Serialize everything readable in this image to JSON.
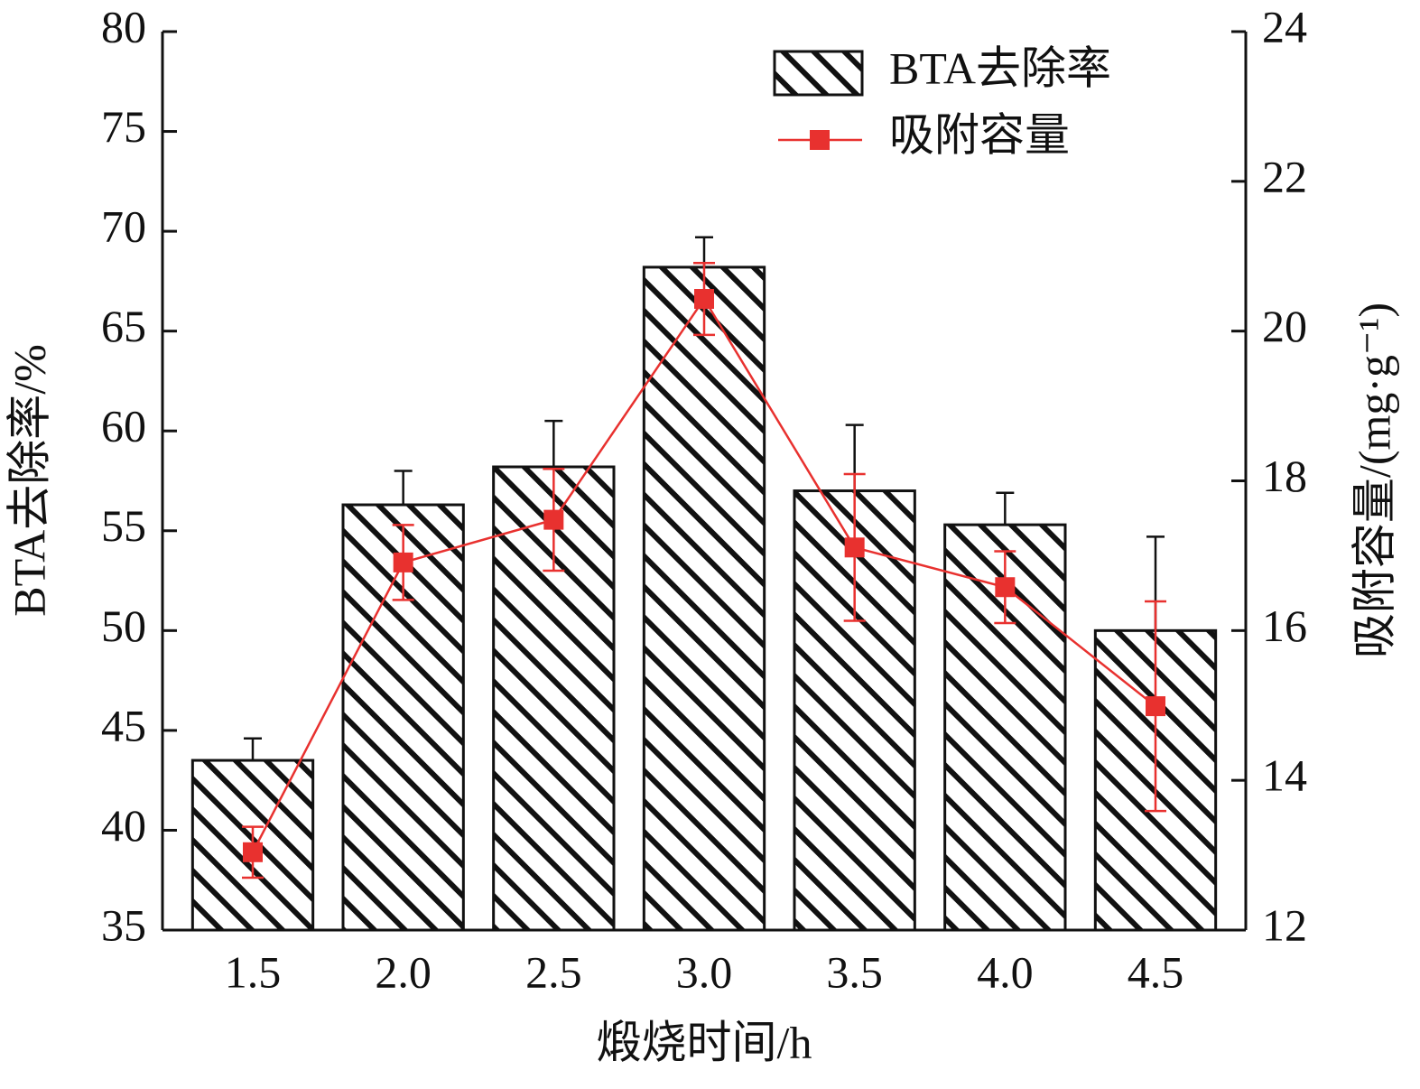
{
  "chart_data": {
    "type": "bar-line",
    "x_label": "煅烧时间/h",
    "y_label": "BTA去除率/%",
    "y2_label": "吸附容量/(mg·g⁻¹)",
    "categories": [
      "1.5",
      "2.0",
      "2.5",
      "3.0",
      "3.5",
      "4.0",
      "4.5"
    ],
    "series": [
      {
        "name": "BTA去除率",
        "type": "bar",
        "color": "#111111",
        "axis": "y",
        "values": [
          43.5,
          56.3,
          58.2,
          68.2,
          57.0,
          55.3,
          50.0
        ],
        "errors": [
          1.1,
          1.7,
          2.3,
          1.5,
          3.3,
          1.6,
          4.7
        ]
      },
      {
        "name": "吸附容量",
        "type": "line",
        "color": "#e8312f",
        "axis": "y2",
        "values": [
          13.04,
          16.91,
          17.48,
          20.43,
          17.11,
          16.58,
          14.99
        ],
        "errors": [
          0.34,
          0.5,
          0.68,
          0.48,
          0.98,
          0.48,
          1.4
        ]
      }
    ],
    "ylim": [
      35,
      80
    ],
    "yticks": [
      35,
      40,
      45,
      50,
      55,
      60,
      65,
      70,
      75,
      80
    ],
    "y2lim": [
      12,
      24
    ],
    "y2ticks": [
      12,
      14,
      16,
      18,
      20,
      22,
      24
    ],
    "legend": "upper right"
  }
}
